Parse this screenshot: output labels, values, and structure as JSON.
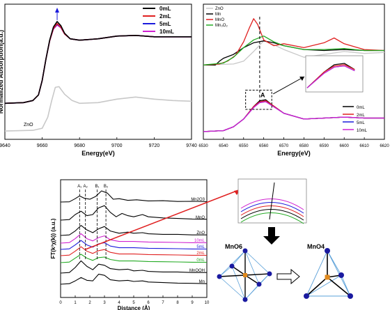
{
  "chart_data": [
    {
      "type": "line",
      "xlabel": "Energy(eV)",
      "ylabel": "Normalized Absorption(a.u.)",
      "xlim": [
        9640,
        9740
      ],
      "xticks": [
        9640,
        9660,
        9680,
        9700,
        9720,
        9740
      ],
      "legend_position": "top-right",
      "annotations": [
        "ZnO"
      ],
      "series": [
        {
          "name": "0mL",
          "color": "#000000",
          "x": [
            9640,
            9650,
            9655,
            9658,
            9660,
            9662,
            9664,
            9666,
            9668,
            9670,
            9672,
            9675,
            9680,
            9690,
            9700,
            9710,
            9720,
            9730,
            9740
          ],
          "y": [
            0.02,
            0.03,
            0.06,
            0.14,
            0.35,
            0.66,
            0.93,
            1.12,
            1.2,
            1.14,
            1.03,
            0.95,
            0.93,
            0.95,
            0.99,
            1.0,
            0.98,
            0.98,
            0.98
          ]
        },
        {
          "name": "2mL",
          "color": "#e02020",
          "x": [
            9640,
            9650,
            9655,
            9658,
            9660,
            9662,
            9664,
            9666,
            9668,
            9670,
            9672,
            9675,
            9680,
            9690,
            9700,
            9710,
            9720,
            9730,
            9740
          ],
          "y": [
            0.02,
            0.03,
            0.06,
            0.14,
            0.35,
            0.66,
            0.92,
            1.1,
            1.17,
            1.12,
            1.02,
            0.95,
            0.93,
            0.95,
            0.99,
            1.0,
            0.98,
            0.98,
            0.98
          ]
        },
        {
          "name": "5mL",
          "color": "#1a1adc",
          "x": [
            9640,
            9650,
            9655,
            9658,
            9660,
            9662,
            9664,
            9666,
            9668,
            9670,
            9672,
            9675,
            9680,
            9690,
            9700,
            9710,
            9720,
            9730,
            9740
          ],
          "y": [
            0.02,
            0.03,
            0.06,
            0.14,
            0.35,
            0.66,
            0.92,
            1.1,
            1.16,
            1.12,
            1.02,
            0.95,
            0.93,
            0.95,
            0.99,
            1.0,
            0.98,
            0.98,
            0.98
          ]
        },
        {
          "name": "10mL",
          "color": "#d020d0",
          "x": [
            9640,
            9650,
            9655,
            9658,
            9660,
            9662,
            9664,
            9666,
            9668,
            9670,
            9672,
            9675,
            9680,
            9690,
            9700,
            9710,
            9720,
            9730,
            9740
          ],
          "y": [
            0.02,
            0.03,
            0.06,
            0.14,
            0.35,
            0.66,
            0.92,
            1.09,
            1.15,
            1.11,
            1.02,
            0.95,
            0.93,
            0.95,
            0.99,
            1.0,
            0.98,
            0.98,
            0.98
          ]
        },
        {
          "color": "#c8c8c8",
          "x": [
            9640,
            9655,
            9660,
            9663,
            9665,
            9667,
            9669,
            9672,
            9676,
            9680,
            9690,
            9700,
            9710,
            9720,
            9730,
            9740
          ],
          "y": [
            -0.38,
            -0.37,
            -0.34,
            -0.18,
            0.05,
            0.25,
            0.26,
            0.15,
            0.06,
            0.02,
            0.03,
            0.08,
            0.11,
            0.08,
            0.06,
            0.05
          ]
        }
      ]
    },
    {
      "type": "line",
      "xlabel": "Energy(eV)",
      "xlim": [
        6530,
        6620
      ],
      "xticks": [
        6530,
        6540,
        6550,
        6560,
        6570,
        6580,
        6590,
        6600,
        6610,
        6620
      ],
      "legend_top": [
        "ZnO",
        "Mn",
        "MnO",
        "Mn₃O₂"
      ],
      "legend_bottom": [
        "0mL",
        "2mL",
        "5mL",
        "10mL"
      ],
      "annotations": [
        "A"
      ],
      "series": [
        {
          "name": "ZnO",
          "color": "#c8c8c8",
          "x": [
            6530,
            6545,
            6550,
            6555,
            6560,
            6565,
            6570,
            6580,
            6590,
            6600,
            6610,
            6620
          ],
          "y": [
            0.72,
            0.73,
            0.76,
            0.86,
            0.97,
            0.93,
            0.88,
            0.8,
            0.83,
            0.86,
            0.84,
            0.85
          ]
        },
        {
          "name": "Mn",
          "color": "#000000",
          "x": [
            6530,
            6536,
            6538,
            6540,
            6545,
            6550,
            6555,
            6560,
            6565,
            6570,
            6580,
            6590,
            6600,
            6610,
            6620
          ],
          "y": [
            0.72,
            0.72,
            0.76,
            0.79,
            0.83,
            0.9,
            0.95,
            0.97,
            0.95,
            0.92,
            0.88,
            0.87,
            0.88,
            0.87,
            0.87
          ]
        },
        {
          "name": "MnO",
          "color": "#e02020",
          "x": [
            6530,
            6538,
            6542,
            6546,
            6550,
            6553,
            6555,
            6557,
            6560,
            6565,
            6570,
            6580,
            6590,
            6595,
            6600,
            6610,
            6620
          ],
          "y": [
            0.72,
            0.73,
            0.76,
            0.82,
            0.96,
            1.11,
            1.2,
            1.14,
            0.98,
            0.92,
            0.94,
            0.9,
            0.95,
            1.0,
            0.94,
            0.88,
            0.87
          ]
        },
        {
          "name": "Mn₃O₂",
          "color": "#22aa22",
          "x": [
            6530,
            6540,
            6545,
            6550,
            6555,
            6560,
            6565,
            6570,
            6580,
            6590,
            6600,
            6610,
            6620
          ],
          "y": [
            0.72,
            0.74,
            0.8,
            0.9,
            0.98,
            1.02,
            0.96,
            0.92,
            0.88,
            0.88,
            0.89,
            0.87,
            0.87
          ]
        },
        {
          "name": "0mL",
          "color": "#000000",
          "x": [
            6530,
            6540,
            6545,
            6550,
            6555,
            6558,
            6561,
            6564,
            6570,
            6580,
            6590,
            6600,
            6610,
            6620
          ],
          "y": [
            0.03,
            0.04,
            0.08,
            0.16,
            0.29,
            0.35,
            0.36,
            0.31,
            0.22,
            0.16,
            0.17,
            0.18,
            0.17,
            0.17
          ]
        },
        {
          "name": "2mL",
          "color": "#e02020",
          "x": [
            6530,
            6540,
            6545,
            6550,
            6555,
            6558,
            6561,
            6564,
            6570,
            6580,
            6590,
            6600,
            6610,
            6620
          ],
          "y": [
            0.03,
            0.04,
            0.08,
            0.16,
            0.29,
            0.34,
            0.35,
            0.31,
            0.22,
            0.16,
            0.17,
            0.18,
            0.17,
            0.17
          ]
        },
        {
          "name": "5mL",
          "color": "#1a1adc",
          "x": [
            6530,
            6540,
            6545,
            6550,
            6555,
            6558,
            6561,
            6564,
            6570,
            6580,
            6590,
            6600,
            6610,
            6620
          ],
          "y": [
            0.03,
            0.04,
            0.08,
            0.16,
            0.28,
            0.33,
            0.34,
            0.3,
            0.22,
            0.16,
            0.17,
            0.18,
            0.17,
            0.17
          ]
        },
        {
          "name": "10mL",
          "color": "#d020d0",
          "x": [
            6530,
            6540,
            6545,
            6550,
            6555,
            6558,
            6561,
            6564,
            6570,
            6580,
            6590,
            6600,
            6610,
            6620
          ],
          "y": [
            0.03,
            0.04,
            0.08,
            0.16,
            0.28,
            0.33,
            0.34,
            0.3,
            0.22,
            0.16,
            0.17,
            0.18,
            0.17,
            0.17
          ]
        }
      ]
    },
    {
      "type": "line",
      "xlabel": "Distance (Å)",
      "ylabel": "FT(k³χ(k)) (a.u.)",
      "xlim": [
        0,
        10
      ],
      "xticks": [
        0,
        1,
        2,
        3,
        4,
        5,
        6,
        7,
        8,
        9,
        10
      ],
      "markers": [
        "A₁",
        "A₂",
        "B₁",
        "B₂"
      ],
      "series": [
        {
          "name": "Mn2O3",
          "color": "#000000",
          "x": [
            0,
            0.6,
            1,
            1.3,
            1.6,
            2,
            2.4,
            2.8,
            3.2,
            3.6,
            4,
            4.6,
            5.2,
            6,
            7,
            8,
            9,
            10
          ],
          "y": [
            0,
            0.02,
            0.3,
            0.55,
            0.35,
            0.25,
            0.5,
            1.0,
            0.8,
            0.25,
            0.3,
            0.15,
            0.2,
            0.1,
            0.12,
            0.05,
            0.06,
            0.03
          ]
        },
        {
          "name": "MnO",
          "color": "#000000",
          "x": [
            0,
            0.6,
            1,
            1.4,
            1.8,
            2.2,
            2.6,
            3,
            3.4,
            3.8,
            4.2,
            4.6,
            5,
            5.6,
            6,
            7,
            8,
            9,
            10
          ],
          "y": [
            0,
            0.05,
            0.5,
            0.8,
            0.4,
            0.5,
            1.1,
            1.3,
            0.7,
            0.3,
            0.6,
            0.4,
            0.3,
            0.5,
            0.3,
            0.2,
            0.15,
            0.1,
            0.08
          ]
        },
        {
          "name": "ZnO",
          "color": "#000000",
          "x": [
            0,
            0.6,
            1,
            1.4,
            1.8,
            2.2,
            2.6,
            3,
            3.4,
            4,
            4.6,
            5,
            5.6,
            6,
            7,
            8,
            9,
            10
          ],
          "y": [
            0,
            0.05,
            0.4,
            0.9,
            0.5,
            0.25,
            0.6,
            0.8,
            0.4,
            0.2,
            0.3,
            0.2,
            0.25,
            0.15,
            0.1,
            0.1,
            0.05,
            0.05
          ]
        },
        {
          "name": "10mL",
          "color": "#d020d0",
          "x": [
            0,
            0.6,
            1,
            1.4,
            1.8,
            2.2,
            2.6,
            3,
            3.4,
            4,
            5,
            6,
            7,
            8,
            9,
            10
          ],
          "y": [
            0,
            0.05,
            0.4,
            0.85,
            0.4,
            0.2,
            0.5,
            0.65,
            0.3,
            0.15,
            0.15,
            0.1,
            0.08,
            0.06,
            0.04,
            0.03
          ]
        },
        {
          "name": "5mL",
          "color": "#1a1adc",
          "x": [
            0,
            0.6,
            1,
            1.4,
            1.8,
            2.2,
            2.6,
            3,
            3.4,
            4,
            5,
            6,
            7,
            8,
            9,
            10
          ],
          "y": [
            0,
            0.05,
            0.4,
            0.8,
            0.4,
            0.2,
            0.5,
            0.6,
            0.3,
            0.15,
            0.15,
            0.1,
            0.08,
            0.06,
            0.04,
            0.03
          ]
        },
        {
          "name": "2mL",
          "color": "#e02020",
          "x": [
            0,
            0.6,
            1,
            1.4,
            1.8,
            2.2,
            2.6,
            3,
            3.4,
            4,
            5,
            6,
            7,
            8,
            9,
            10
          ],
          "y": [
            0,
            0.05,
            0.4,
            0.8,
            0.4,
            0.2,
            0.45,
            0.55,
            0.3,
            0.15,
            0.15,
            0.1,
            0.08,
            0.06,
            0.04,
            0.03
          ]
        },
        {
          "name": "0mL",
          "color": "#22aa22",
          "x": [
            0,
            0.6,
            1,
            1.4,
            1.8,
            2.2,
            2.6,
            3,
            3.4,
            4,
            5,
            6,
            7,
            8,
            9,
            10
          ],
          "y": [
            0,
            0.05,
            0.4,
            0.75,
            0.4,
            0.2,
            0.45,
            0.5,
            0.28,
            0.15,
            0.15,
            0.1,
            0.08,
            0.06,
            0.04,
            0.03
          ]
        },
        {
          "name": "MnOOH",
          "color": "#000000",
          "x": [
            0,
            0.6,
            1,
            1.4,
            1.8,
            2.2,
            2.6,
            3,
            3.4,
            4,
            4.6,
            5,
            5.6,
            6,
            7,
            8,
            9,
            10
          ],
          "y": [
            0,
            0.05,
            0.5,
            1.1,
            0.6,
            0.3,
            0.8,
            0.7,
            0.4,
            0.3,
            0.35,
            0.2,
            0.25,
            0.15,
            0.1,
            0.1,
            0.05,
            0.05
          ]
        },
        {
          "name": "Mn",
          "color": "#000000",
          "x": [
            0,
            0.6,
            1,
            1.4,
            1.8,
            2.2,
            2.6,
            3,
            3.4,
            4,
            4.6,
            5,
            5.6,
            6,
            7,
            8,
            9,
            10
          ],
          "y": [
            0,
            0.05,
            0.3,
            0.6,
            0.35,
            0.3,
            0.9,
            0.8,
            0.4,
            0.3,
            0.35,
            0.25,
            0.3,
            0.2,
            0.15,
            0.1,
            0.08,
            0.05
          ]
        }
      ]
    }
  ],
  "structure_labels": {
    "left": "MnO6",
    "right": "MnO4"
  },
  "colors": {
    "atom": "#1a1aa0",
    "center": "#e08a1e",
    "edge": "#5aa0d8",
    "callout_line": "#e02020",
    "arrow": "#000000"
  }
}
